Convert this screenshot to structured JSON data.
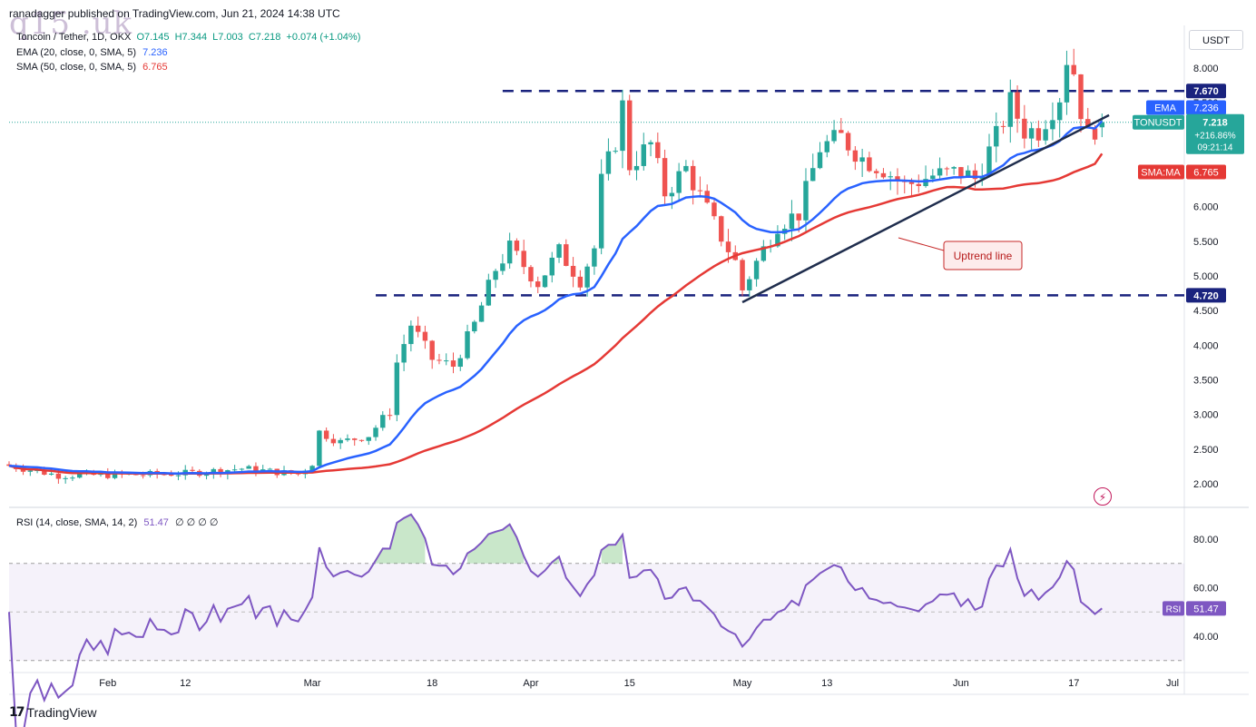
{
  "header": {
    "publisher": "ranadagger published on TradingView.com, Jun 21, 2024 14:38 UTC",
    "watermark": "q15 .uk"
  },
  "legend": {
    "symbol": "Toncoin / Tether, 1D, OKX",
    "open": "O7.145",
    "high": "H7.344",
    "low": "L7.003",
    "close": "C7.218",
    "change": "+0.074 (+1.04%)",
    "ema_label": "EMA (20, close, 0, SMA, 5)",
    "ema_value": "7.236",
    "sma_label": "SMA (50, close, 0, SMA, 5)",
    "sma_value": "6.765",
    "rsi_label": "RSI (14, close, SMA, 14, 2)",
    "rsi_value": "51.47",
    "rsi_extra": "∅ ∅ ∅ ∅"
  },
  "currency": "USDT",
  "footer": {
    "brand": "TradingView"
  },
  "colors": {
    "up": "#26a69a",
    "down": "#ef5350",
    "ema": "#2962ff",
    "sma": "#e53935",
    "rsi": "#7e57c2",
    "resistance": "#1a237e",
    "trendline": "#1f2d4d"
  },
  "chart_data": [
    {
      "type": "candlestick",
      "title": "Toncoin / Tether, 1D, OKX",
      "x_tick_labels": [
        "Feb",
        "12",
        "Mar",
        "18",
        "Apr",
        "15",
        "May",
        "13",
        "Jun",
        "17",
        "Jul"
      ],
      "y_tick_labels": [
        "8.000",
        "7.500",
        "7.000",
        "6.500",
        "6.000",
        "5.500",
        "5.000",
        "4.500",
        "4.000",
        "3.500",
        "3.000",
        "2.500",
        "2.000"
      ],
      "ylim": [
        1.7,
        8.4
      ],
      "x_range_days": [
        "2024-01-18",
        "2024-07-01"
      ],
      "series": [
        {
          "name": "TONUSDT",
          "description": "daily candles",
          "last": "7.218",
          "change_pct": "+216.86%",
          "countdown": "09:21:14"
        },
        {
          "name": "EMA",
          "last": "7.236"
        },
        {
          "name": "SMA:MA",
          "last": "6.765"
        }
      ],
      "horizontal_levels": [
        {
          "label": "7.670",
          "value": 7.67
        },
        {
          "label": "4.720",
          "value": 4.72
        }
      ],
      "annotations": [
        {
          "text": "Uptrend line",
          "from": [
            "2024-05-01",
            4.62
          ],
          "to": [
            "2024-06-22",
            7.32
          ]
        }
      ]
    },
    {
      "type": "line",
      "title": "RSI (14, close, SMA, 14, 2)",
      "y_tick_labels": [
        "80.00",
        "60.00",
        "40.00"
      ],
      "ylim": [
        27,
        93
      ],
      "band": [
        30,
        70
      ],
      "midline": 50,
      "series": [
        {
          "name": "RSI",
          "last": "51.47"
        }
      ]
    }
  ]
}
